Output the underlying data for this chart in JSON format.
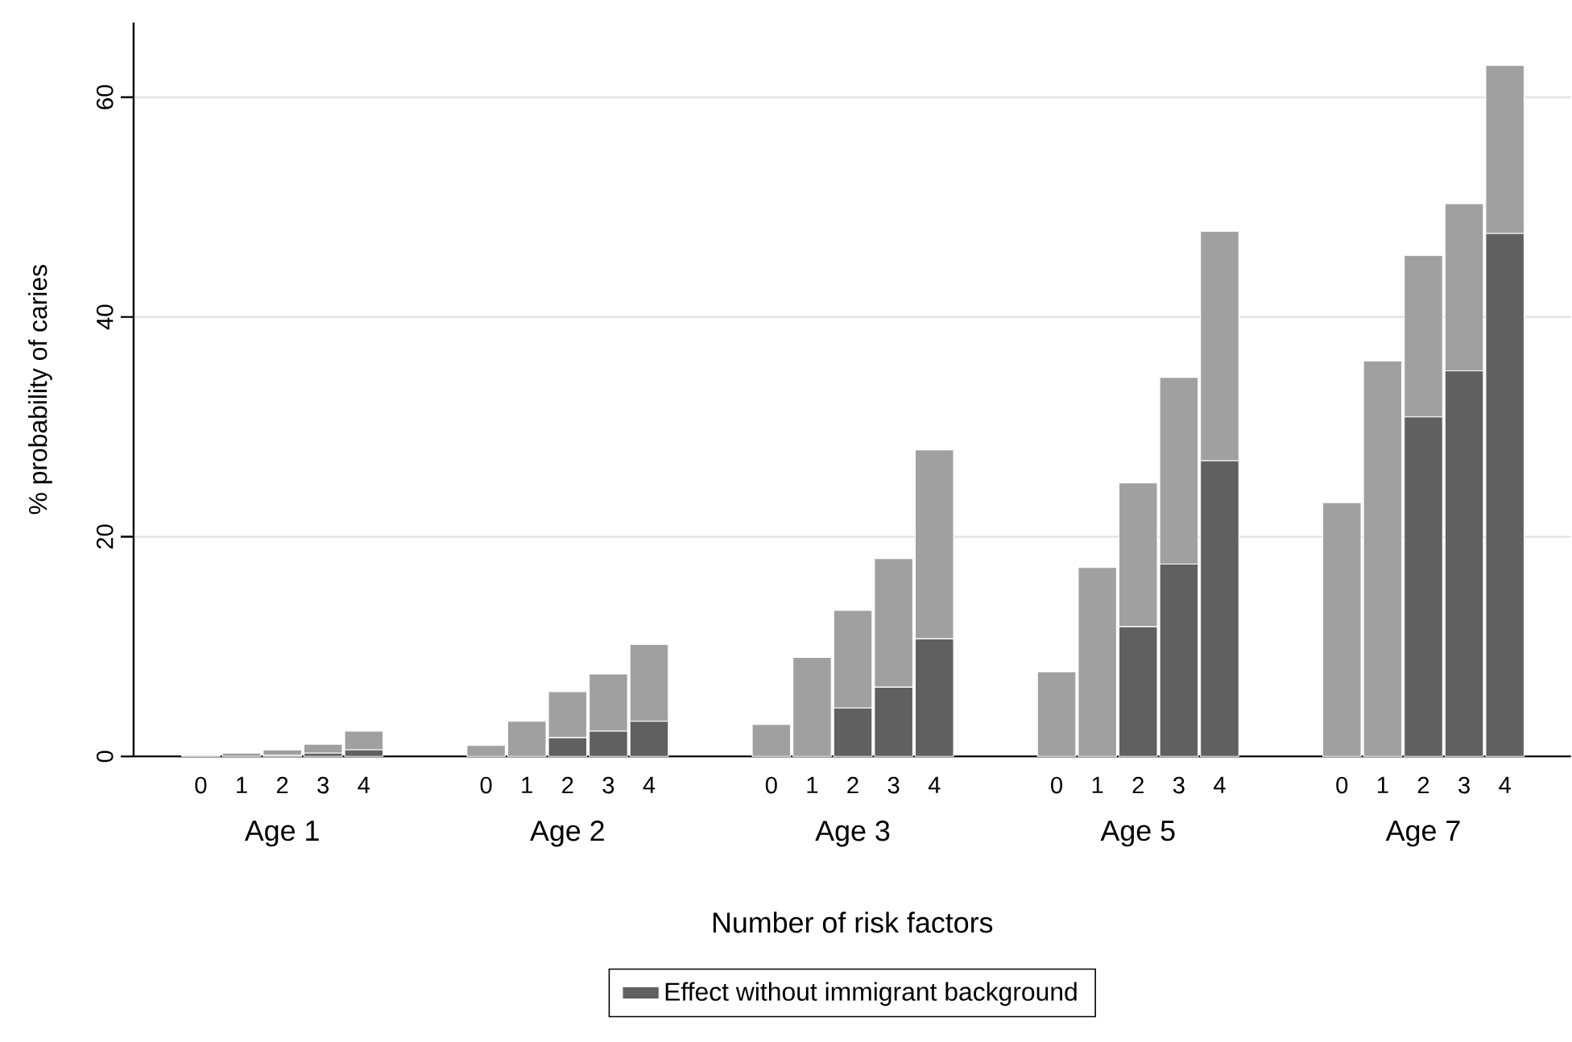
{
  "chart_data": {
    "type": "bar",
    "stacked": true,
    "ylabel": "% probability of caries",
    "xlabel": "Number of risk factors",
    "categories": [
      "0",
      "1",
      "2",
      "3",
      "4",
      null,
      null,
      "0",
      "1",
      "2",
      "3",
      "4",
      null,
      null,
      "0",
      "1",
      "2",
      "3",
      "4",
      null,
      null,
      "0",
      "1",
      "2",
      "3",
      "4",
      null,
      null,
      "0",
      "1",
      "2",
      "3",
      "4"
    ],
    "annotations": [
      "Age 1",
      "Age 2",
      "Age 3",
      "Age 5",
      "Age 7"
    ],
    "series": [
      {
        "name": "Effect without immigrant background",
        "color": "#606060",
        "values": [
          null,
          null,
          0.1,
          0.3,
          0.6,
          null,
          null,
          null,
          null,
          1.7,
          2.3,
          3.2,
          null,
          null,
          null,
          null,
          4.4,
          6.3,
          10.7,
          null,
          null,
          null,
          null,
          11.8,
          17.5,
          26.9,
          null,
          null,
          null,
          null,
          30.9,
          35.1,
          47.6
        ]
      },
      {
        "color": "#a0a0a0",
        "values": [
          0.1,
          0.3,
          0.5,
          0.8,
          1.7,
          null,
          null,
          1.0,
          3.2,
          4.2,
          5.2,
          7.0,
          null,
          null,
          2.9,
          9.0,
          8.9,
          11.7,
          17.2,
          null,
          null,
          7.7,
          17.2,
          13.1,
          17.0,
          20.9,
          null,
          null,
          23.1,
          36.0,
          14.7,
          15.2,
          15.3
        ]
      }
    ],
    "ylim": [
      0,
      66.8
    ],
    "yticks": [
      0,
      20,
      40,
      60
    ],
    "grid": "y",
    "legend": "bottom"
  }
}
